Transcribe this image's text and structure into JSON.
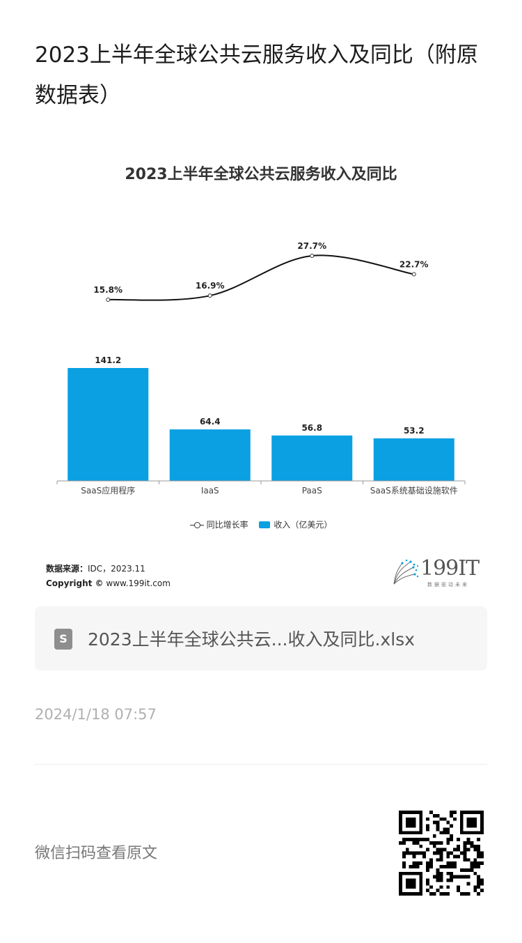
{
  "article": {
    "title": "2023上半年全球公共云服务收入及同比（附原数据表）"
  },
  "chart_data": {
    "type": "bar",
    "title": "2023上半年全球公共云服务收入及同比",
    "categories": [
      "SaaS应用程序",
      "IaaS",
      "PaaS",
      "SaaS系统基础设施软件"
    ],
    "series": [
      {
        "name": "收入（亿美元）",
        "type": "bar",
        "values": [
          141.2,
          64.4,
          56.8,
          53.2
        ],
        "labels": [
          "141.2",
          "64.4",
          "56.8",
          "53.2"
        ],
        "color": "#0aa0e2"
      },
      {
        "name": "同比增长率",
        "type": "line",
        "values": [
          15.8,
          16.9,
          27.7,
          22.7
        ],
        "labels": [
          "15.8%",
          "16.9%",
          "27.7%",
          "22.7%"
        ],
        "color": "#111111"
      }
    ],
    "legend": "bottom",
    "grid": false
  },
  "source": {
    "label": "数据来源：",
    "text": "IDC，2023.11",
    "copyright_label": "Copyright ©",
    "copyright_text": "www.199it.com"
  },
  "brand": {
    "logo_text": "199IT",
    "tagline": "数据驱动未来",
    "logo_icon": "dandelion-icon"
  },
  "file": {
    "icon": "document-icon",
    "icon_glyph": "S",
    "name": "2023上半年全球公共云...收入及同比.xlsx"
  },
  "meta": {
    "timestamp": "2024/1/18 07:57",
    "qr_hint": "微信扫码查看原文"
  }
}
